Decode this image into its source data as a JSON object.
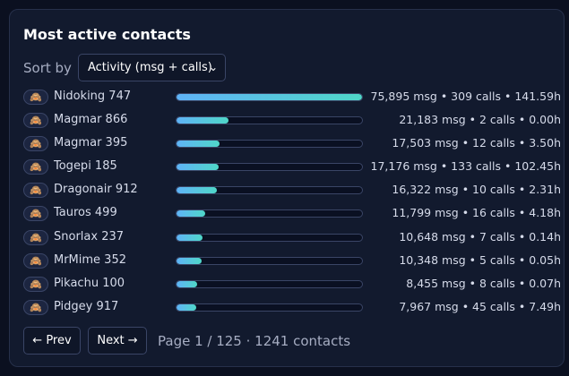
{
  "title": "Most active contacts",
  "sort": {
    "label": "Sort by",
    "selected": "Activity (msg + calls)",
    "chevron": "⌄"
  },
  "avatar_glyph": "🙈",
  "contacts": [
    {
      "name": "Nidoking 747",
      "activity_fraction": 1.0,
      "stats": "75,895 msg • 309 calls • 141.59h"
    },
    {
      "name": "Magmar 866",
      "activity_fraction": 0.28,
      "stats": "21,183 msg • 2 calls • 0.00h"
    },
    {
      "name": "Magmar 395",
      "activity_fraction": 0.23,
      "stats": "17,503 msg • 12 calls • 3.50h"
    },
    {
      "name": "Togepi 185",
      "activity_fraction": 0.227,
      "stats": "17,176 msg • 133 calls • 102.45h"
    },
    {
      "name": "Dragonair 912",
      "activity_fraction": 0.216,
      "stats": "16,322 msg • 10 calls • 2.31h"
    },
    {
      "name": "Tauros 499",
      "activity_fraction": 0.156,
      "stats": "11,799 msg • 16 calls • 4.18h"
    },
    {
      "name": "Snorlax 237",
      "activity_fraction": 0.14,
      "stats": "10,648 msg • 7 calls • 0.14h"
    },
    {
      "name": "MrMime 352",
      "activity_fraction": 0.136,
      "stats": "10,348 msg • 5 calls • 0.05h"
    },
    {
      "name": "Pikachu 100",
      "activity_fraction": 0.111,
      "stats": "8,455 msg • 8 calls • 0.07h"
    },
    {
      "name": "Pidgey 917",
      "activity_fraction": 0.105,
      "stats": "7,967 msg • 45 calls • 7.49h"
    }
  ],
  "pagination": {
    "prev_label": "← Prev",
    "next_label": "Next →",
    "info": "Page 1 / 125 · 1241 contacts"
  },
  "colors": {
    "bar_start": "#5fb3f7",
    "bar_end": "#4fd7c8",
    "background": "#0b1020",
    "card": "#121a2e"
  }
}
